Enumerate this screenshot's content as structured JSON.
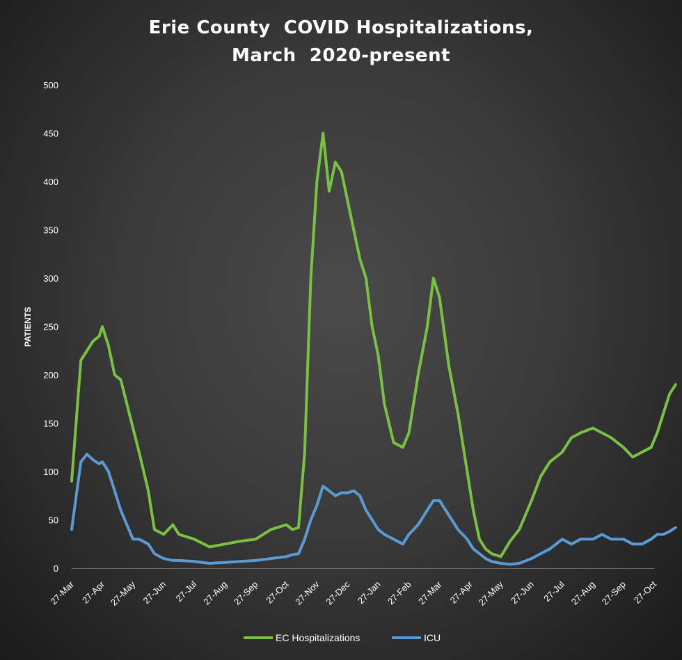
{
  "chart_data": {
    "type": "line",
    "title": [
      "Erie County  COVID Hospitalizations,",
      "March  2020-present"
    ],
    "xlabel": "",
    "ylabel": "PATIENTS",
    "ylim": [
      0,
      500
    ],
    "yticks": [
      0,
      50,
      100,
      150,
      200,
      250,
      300,
      350,
      400,
      450,
      500
    ],
    "xtick_labels": [
      "27-Mar",
      "27-Apr",
      "27-May",
      "27-Jun",
      "27-Jul",
      "27-Aug",
      "27-Sep",
      "27-Oct",
      "27-Nov",
      "27-Dec",
      "27-Jan",
      "27-Feb",
      "27-Mar",
      "27-Apr",
      "27-May",
      "27-Jun",
      "27-Jul",
      "27-Aug",
      "27-Sep",
      "27-Oct"
    ],
    "x_months": [
      0,
      0.3,
      0.5,
      0.7,
      0.9,
      1,
      1.2,
      1.4,
      1.6,
      1.8,
      2,
      2.2,
      2.5,
      2.7,
      3,
      3.3,
      3.5,
      4,
      4.5,
      5,
      5.5,
      6,
      6.5,
      7,
      7.2,
      7.4,
      7.6,
      7.8,
      8,
      8.2,
      8.4,
      8.6,
      8.8,
      9,
      9.2,
      9.4,
      9.6,
      9.8,
      10,
      10.2,
      10.5,
      10.8,
      11,
      11.3,
      11.6,
      11.8,
      12,
      12.3,
      12.6,
      12.9,
      13.1,
      13.3,
      13.5,
      13.7,
      14,
      14.3,
      14.6,
      15,
      15.3,
      15.6,
      15.8,
      16,
      16.3,
      16.6,
      17,
      17.3,
      17.6,
      18,
      18.3,
      18.6,
      18.9,
      19.1,
      19.3,
      19.5,
      19.7
    ],
    "series": [
      {
        "name": "EC Hospitalizations",
        "color": "#7ac143",
        "values": [
          90,
          215,
          225,
          235,
          240,
          250,
          230,
          200,
          195,
          170,
          145,
          120,
          80,
          40,
          35,
          45,
          35,
          30,
          22,
          25,
          28,
          30,
          40,
          45,
          40,
          42,
          120,
          300,
          400,
          450,
          390,
          420,
          410,
          380,
          350,
          320,
          300,
          250,
          220,
          170,
          130,
          125,
          140,
          200,
          250,
          300,
          280,
          210,
          160,
          100,
          60,
          30,
          20,
          15,
          12,
          28,
          40,
          70,
          95,
          110,
          115,
          120,
          135,
          140,
          145,
          140,
          135,
          125,
          115,
          120,
          125,
          140,
          160,
          180,
          190
        ]
      },
      {
        "name": "ICU",
        "color": "#5b9bd5",
        "values": [
          40,
          110,
          118,
          112,
          108,
          110,
          100,
          80,
          60,
          45,
          30,
          30,
          25,
          15,
          10,
          8,
          8,
          7,
          5,
          6,
          7,
          8,
          10,
          12,
          14,
          15,
          30,
          50,
          65,
          85,
          80,
          75,
          78,
          78,
          80,
          75,
          60,
          50,
          40,
          35,
          30,
          25,
          35,
          45,
          60,
          70,
          70,
          55,
          40,
          30,
          20,
          15,
          10,
          7,
          5,
          4,
          5,
          10,
          15,
          20,
          25,
          30,
          25,
          30,
          30,
          35,
          30,
          30,
          25,
          25,
          30,
          35,
          35,
          38,
          42
        ]
      }
    ],
    "legend": {
      "position": "bottom"
    },
    "grid": false
  }
}
